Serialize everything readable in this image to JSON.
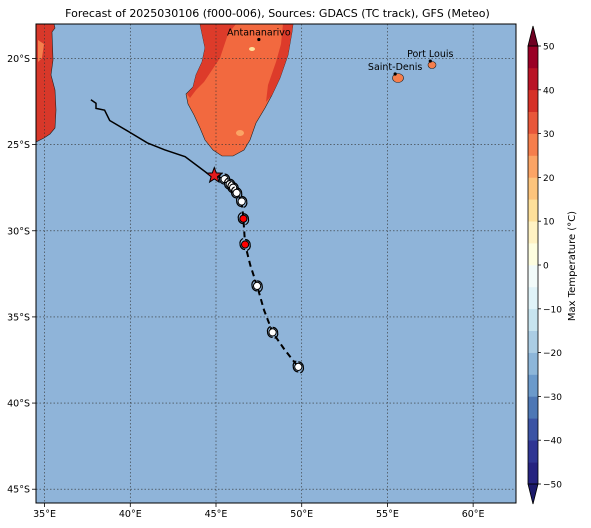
{
  "title": "Forecast of 2025030106 (f000-006), Sources: GDACS (TC track), GFS (Meteo)",
  "map": {
    "lon_range": [
      34.5,
      62.5
    ],
    "lat_range": [
      -45.8,
      -18.0
    ],
    "lon_ticks": [
      {
        "v": 35,
        "label": "35°E"
      },
      {
        "v": 40,
        "label": "40°E"
      },
      {
        "v": 45,
        "label": "45°E"
      },
      {
        "v": 50,
        "label": "50°E"
      },
      {
        "v": 55,
        "label": "55°E"
      },
      {
        "v": 60,
        "label": "60°E"
      }
    ],
    "lat_ticks": [
      {
        "v": -20,
        "label": "20°S"
      },
      {
        "v": -25,
        "label": "25°S"
      },
      {
        "v": -30,
        "label": "30°S"
      },
      {
        "v": -35,
        "label": "35°S"
      },
      {
        "v": -40,
        "label": "40°S"
      },
      {
        "v": -45,
        "label": "45°S"
      }
    ],
    "grid": true,
    "ocean_color": "#8fb4d9",
    "cities": [
      {
        "name": "Antananarivo",
        "lon": 47.5,
        "lat": -18.9
      },
      {
        "name": "Saint-Denis",
        "lon": 55.45,
        "lat": -20.9
      },
      {
        "name": "Port Louis",
        "lon": 57.5,
        "lat": -20.15
      }
    ]
  },
  "track": {
    "past": [
      [
        37.7,
        -22.4
      ],
      [
        38.0,
        -22.6
      ],
      [
        38.0,
        -22.9
      ],
      [
        38.5,
        -23.0
      ],
      [
        38.8,
        -23.6
      ],
      [
        40.0,
        -24.3
      ],
      [
        41.0,
        -24.9
      ],
      [
        42.0,
        -25.3
      ],
      [
        43.2,
        -25.7
      ],
      [
        44.0,
        -26.3
      ],
      [
        44.8,
        -26.9
      ]
    ],
    "current": {
      "lon": 44.9,
      "lat": -26.8
    },
    "forecast_solid": [
      [
        44.9,
        -26.8
      ],
      [
        45.5,
        -27.0
      ],
      [
        45.9,
        -27.3
      ],
      [
        46.2,
        -27.8
      ],
      [
        46.5,
        -28.3
      ]
    ],
    "forecast_dashed": [
      [
        46.5,
        -28.3
      ],
      [
        46.6,
        -29.3
      ],
      [
        46.7,
        -30.8
      ],
      [
        47.0,
        -32.0
      ],
      [
        47.4,
        -33.2
      ],
      [
        47.8,
        -34.6
      ],
      [
        48.3,
        -35.9
      ],
      [
        49.0,
        -36.9
      ],
      [
        49.8,
        -37.9
      ]
    ],
    "symbols": [
      {
        "lon": 45.5,
        "lat": -27.0,
        "color": "#ffffff"
      },
      {
        "lon": 45.8,
        "lat": -27.3,
        "color": "#ffffff"
      },
      {
        "lon": 46.0,
        "lat": -27.5,
        "color": "#ffffff"
      },
      {
        "lon": 46.2,
        "lat": -27.8,
        "color": "#ffffff"
      },
      {
        "lon": 46.5,
        "lat": -28.3,
        "color": "#ffffff"
      },
      {
        "lon": 46.6,
        "lat": -29.3,
        "color": "#ff0000"
      },
      {
        "lon": 46.7,
        "lat": -30.8,
        "color": "#ff0000"
      },
      {
        "lon": 47.4,
        "lat": -33.2,
        "color": "#ffffff"
      },
      {
        "lon": 48.3,
        "lat": -35.9,
        "color": "#ffffff"
      },
      {
        "lon": 49.8,
        "lat": -37.9,
        "color": "#ffffff"
      }
    ]
  },
  "colorbar": {
    "label": "Max Temperature (°C)",
    "ticks": [
      {
        "v": 50,
        "label": "50"
      },
      {
        "v": 40,
        "label": "40"
      },
      {
        "v": 30,
        "label": "30"
      },
      {
        "v": 20,
        "label": "20"
      },
      {
        "v": 10,
        "label": "10"
      },
      {
        "v": 0,
        "label": "0"
      },
      {
        "v": -10,
        "label": "−10"
      },
      {
        "v": -20,
        "label": "−20"
      },
      {
        "v": -30,
        "label": "−30"
      },
      {
        "v": -40,
        "label": "−40"
      },
      {
        "v": -50,
        "label": "−50"
      }
    ],
    "range": [
      -50,
      50
    ],
    "bands": [
      {
        "from": -50,
        "to": -45,
        "color": "#262380"
      },
      {
        "from": -45,
        "to": -40,
        "color": "#2f3593"
      },
      {
        "from": -40,
        "to": -35,
        "color": "#3b53a4"
      },
      {
        "from": -35,
        "to": -30,
        "color": "#4d77b5"
      },
      {
        "from": -30,
        "to": -25,
        "color": "#6b9acb"
      },
      {
        "from": -25,
        "to": -20,
        "color": "#8db6d9"
      },
      {
        "from": -20,
        "to": -15,
        "color": "#abcde4"
      },
      {
        "from": -15,
        "to": -10,
        "color": "#c7e4ef"
      },
      {
        "from": -10,
        "to": -5,
        "color": "#e0f3f8"
      },
      {
        "from": -5,
        "to": 0,
        "color": "#f2fbfa"
      },
      {
        "from": 0,
        "to": 5,
        "color": "#fefee0"
      },
      {
        "from": 5,
        "to": 10,
        "color": "#fff2c3"
      },
      {
        "from": 10,
        "to": 15,
        "color": "#fee09a"
      },
      {
        "from": 15,
        "to": 20,
        "color": "#fdc47c"
      },
      {
        "from": 20,
        "to": 25,
        "color": "#fba465"
      },
      {
        "from": 25,
        "to": 30,
        "color": "#f57e4c"
      },
      {
        "from": 30,
        "to": 35,
        "color": "#e8573a"
      },
      {
        "from": 35,
        "to": 40,
        "color": "#d53127"
      },
      {
        "from": 40,
        "to": 45,
        "color": "#b91326"
      },
      {
        "from": 45,
        "to": 50,
        "color": "#9a0026"
      }
    ],
    "under_color": "#1c1a6b",
    "over_color": "#6e0021"
  },
  "colors": {
    "madagascar": "#f2693f",
    "madagascar_north": "#dd3b2a",
    "africa": "#d8382a",
    "reunion": "#f57e4c"
  }
}
